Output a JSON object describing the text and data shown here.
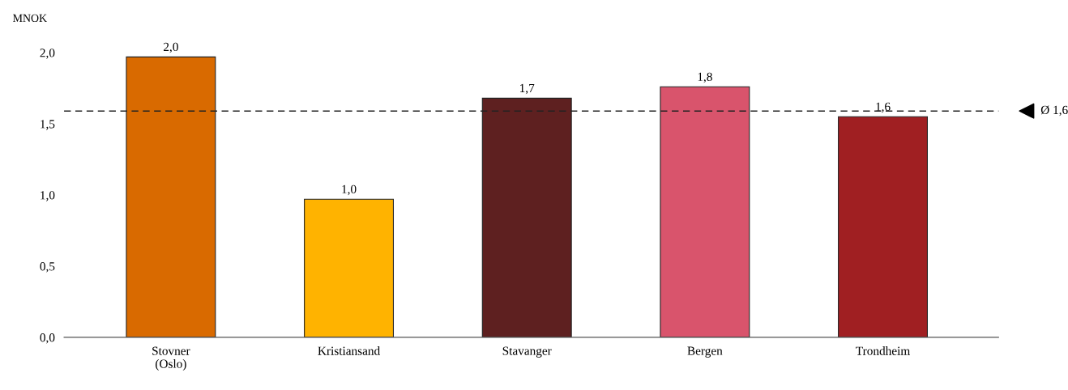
{
  "chart_data": {
    "type": "bar",
    "ylabel": "MNOK",
    "categories": [
      "Stovner\n(Oslo)",
      "Kristiansand",
      "Stavanger",
      "Bergen",
      "Trondheim"
    ],
    "values": [
      1.97,
      0.97,
      1.68,
      1.76,
      1.55
    ],
    "value_labels": [
      "2,0",
      "1,0",
      "1,7",
      "1,8",
      "1,6"
    ],
    "colors": [
      "#d96a00",
      "#ffb300",
      "#5e2020",
      "#d9546c",
      "#a01f22"
    ],
    "ylim": [
      0,
      2.0
    ],
    "yticks": [
      {
        "value": 0,
        "label": "0,0"
      },
      {
        "value": 0.5,
        "label": "0,5"
      },
      {
        "value": 1.0,
        "label": "1,0"
      },
      {
        "value": 1.5,
        "label": "1,5"
      },
      {
        "value": 2.0,
        "label": "2,0"
      }
    ],
    "ref_lines": [
      {
        "axis": "y",
        "value": 1.59,
        "label": "Ø 1,6",
        "color": "#222222",
        "line_style": "dashed"
      }
    ],
    "grid": false
  }
}
